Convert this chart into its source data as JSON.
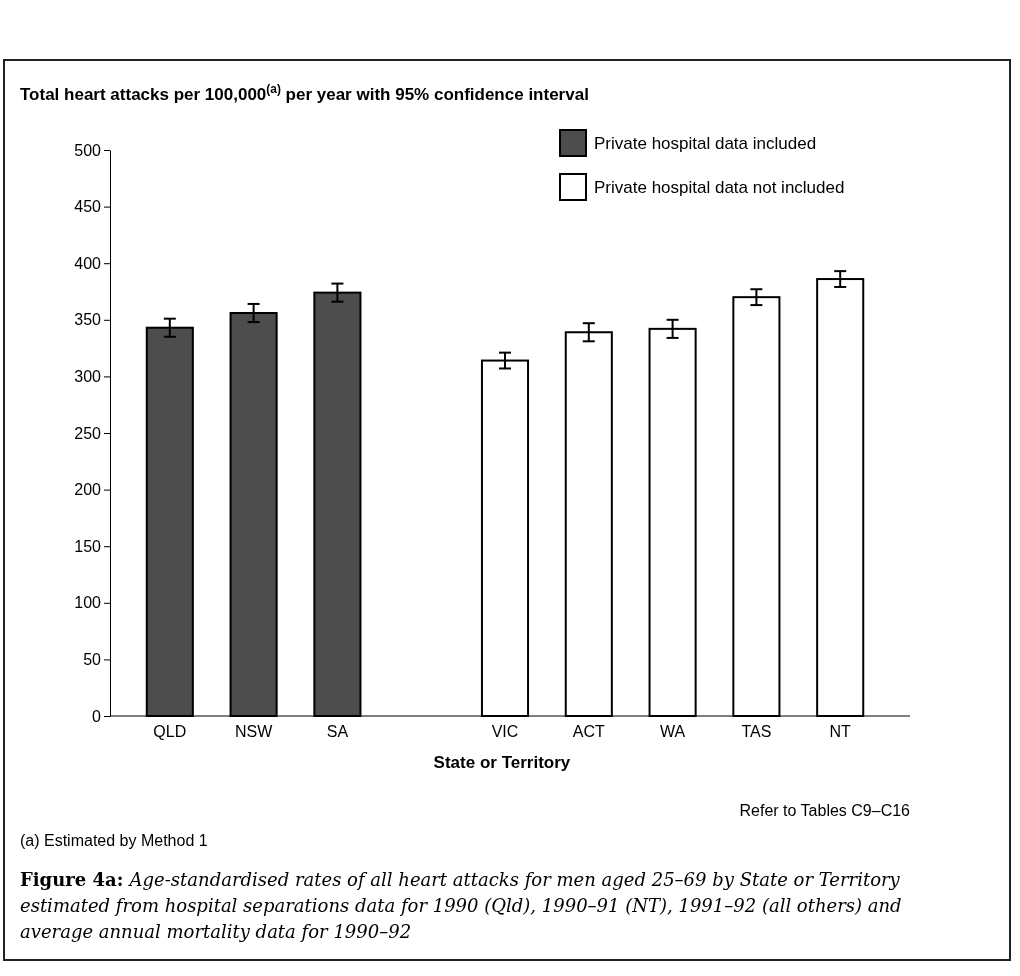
{
  "chart_data": {
    "type": "bar",
    "ylabel": "Total heart attacks per 100,000$^{(a)}$ per year with 95% confidence interval",
    "xlabel": "State or Territory",
    "title": "Figure 4a: Age-standardised rates of all heart attacks for men aged 25–69 by State or Territory estimated from hospital separations data for 1990 (Qld), 1990–91 (NT), 1991–92 (all others) and average annual mortality data for 1990–92",
    "categories": [
      "QLD",
      "NSW",
      "SA",
      null,
      "VIC",
      "ACT",
      "WA",
      "TAS",
      "NT"
    ],
    "series": [
      {
        "name": "Private hospital data included",
        "color": "#4d4d4d",
        "values": [
          343,
          356,
          374,
          null,
          null,
          null,
          null,
          null,
          null
        ],
        "errors": [
          8,
          8,
          8,
          null,
          null,
          null,
          null,
          null,
          null
        ]
      },
      {
        "name": "Private hospital data not included",
        "color": "#ffffff",
        "values": [
          null,
          null,
          null,
          null,
          314,
          339,
          342,
          370,
          386
        ],
        "errors": [
          null,
          null,
          null,
          null,
          7,
          8,
          8,
          7,
          7
        ]
      }
    ],
    "ylim": [
      0,
      500
    ],
    "yticks": [
      0,
      50,
      100,
      150,
      200,
      250,
      300,
      350,
      400,
      450,
      500
    ],
    "grid": false,
    "legend": "top right",
    "annotations": [
      "Refer to Tables C9–C16",
      "(a) Estimated by Method 1"
    ]
  }
}
